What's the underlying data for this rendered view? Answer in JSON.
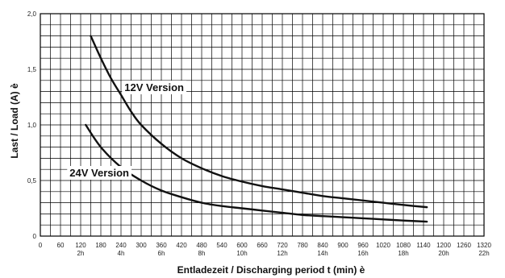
{
  "chart_data": {
    "type": "line",
    "xlabel": "Entladezeit / Discharging period t (min) è",
    "ylabel": "Last / Load (A) è",
    "xlim": [
      0,
      1320
    ],
    "ylim": [
      0,
      2.0
    ],
    "x_ticks": [
      0,
      60,
      120,
      180,
      240,
      300,
      360,
      420,
      480,
      540,
      600,
      660,
      720,
      780,
      840,
      900,
      960,
      1020,
      1080,
      1140,
      1200,
      1260,
      1320
    ],
    "x_hour_labels": [
      {
        "x": 120,
        "label": "2h"
      },
      {
        "x": 240,
        "label": "4h"
      },
      {
        "x": 360,
        "label": "6h"
      },
      {
        "x": 480,
        "label": "8h"
      },
      {
        "x": 600,
        "label": "10h"
      },
      {
        "x": 720,
        "label": "12h"
      },
      {
        "x": 840,
        "label": "14h"
      },
      {
        "x": 960,
        "label": "16h"
      },
      {
        "x": 1080,
        "label": "18h"
      },
      {
        "x": 1200,
        "label": "20h"
      },
      {
        "x": 1320,
        "label": "22h"
      }
    ],
    "y_tick_labels": [
      {
        "value": 0,
        "label": "0"
      },
      {
        "value": 0.5,
        "label": "0,5"
      },
      {
        "value": 1.0,
        "label": "1,0"
      },
      {
        "value": 1.5,
        "label": "1,5"
      },
      {
        "value": 2.0,
        "label": "2,0"
      }
    ],
    "grid": true,
    "series": [
      {
        "name": "12V Version",
        "x": [
          150,
          180,
          210,
          240,
          270,
          300,
          360,
          420,
          480,
          540,
          600,
          660,
          720,
          780,
          840,
          900,
          960,
          1020,
          1080,
          1150
        ],
        "y": [
          1.8,
          1.6,
          1.42,
          1.27,
          1.12,
          1.0,
          0.83,
          0.7,
          0.61,
          0.54,
          0.49,
          0.45,
          0.42,
          0.39,
          0.36,
          0.34,
          0.32,
          0.3,
          0.28,
          0.26
        ]
      },
      {
        "name": "24V Version",
        "x": [
          135,
          180,
          240,
          300,
          360,
          420,
          480,
          540,
          600,
          660,
          720,
          780,
          840,
          900,
          960,
          1020,
          1080,
          1150
        ],
        "y": [
          1.0,
          0.8,
          0.62,
          0.5,
          0.41,
          0.35,
          0.3,
          0.27,
          0.25,
          0.23,
          0.21,
          0.19,
          0.18,
          0.17,
          0.16,
          0.15,
          0.14,
          0.13
        ]
      }
    ]
  }
}
